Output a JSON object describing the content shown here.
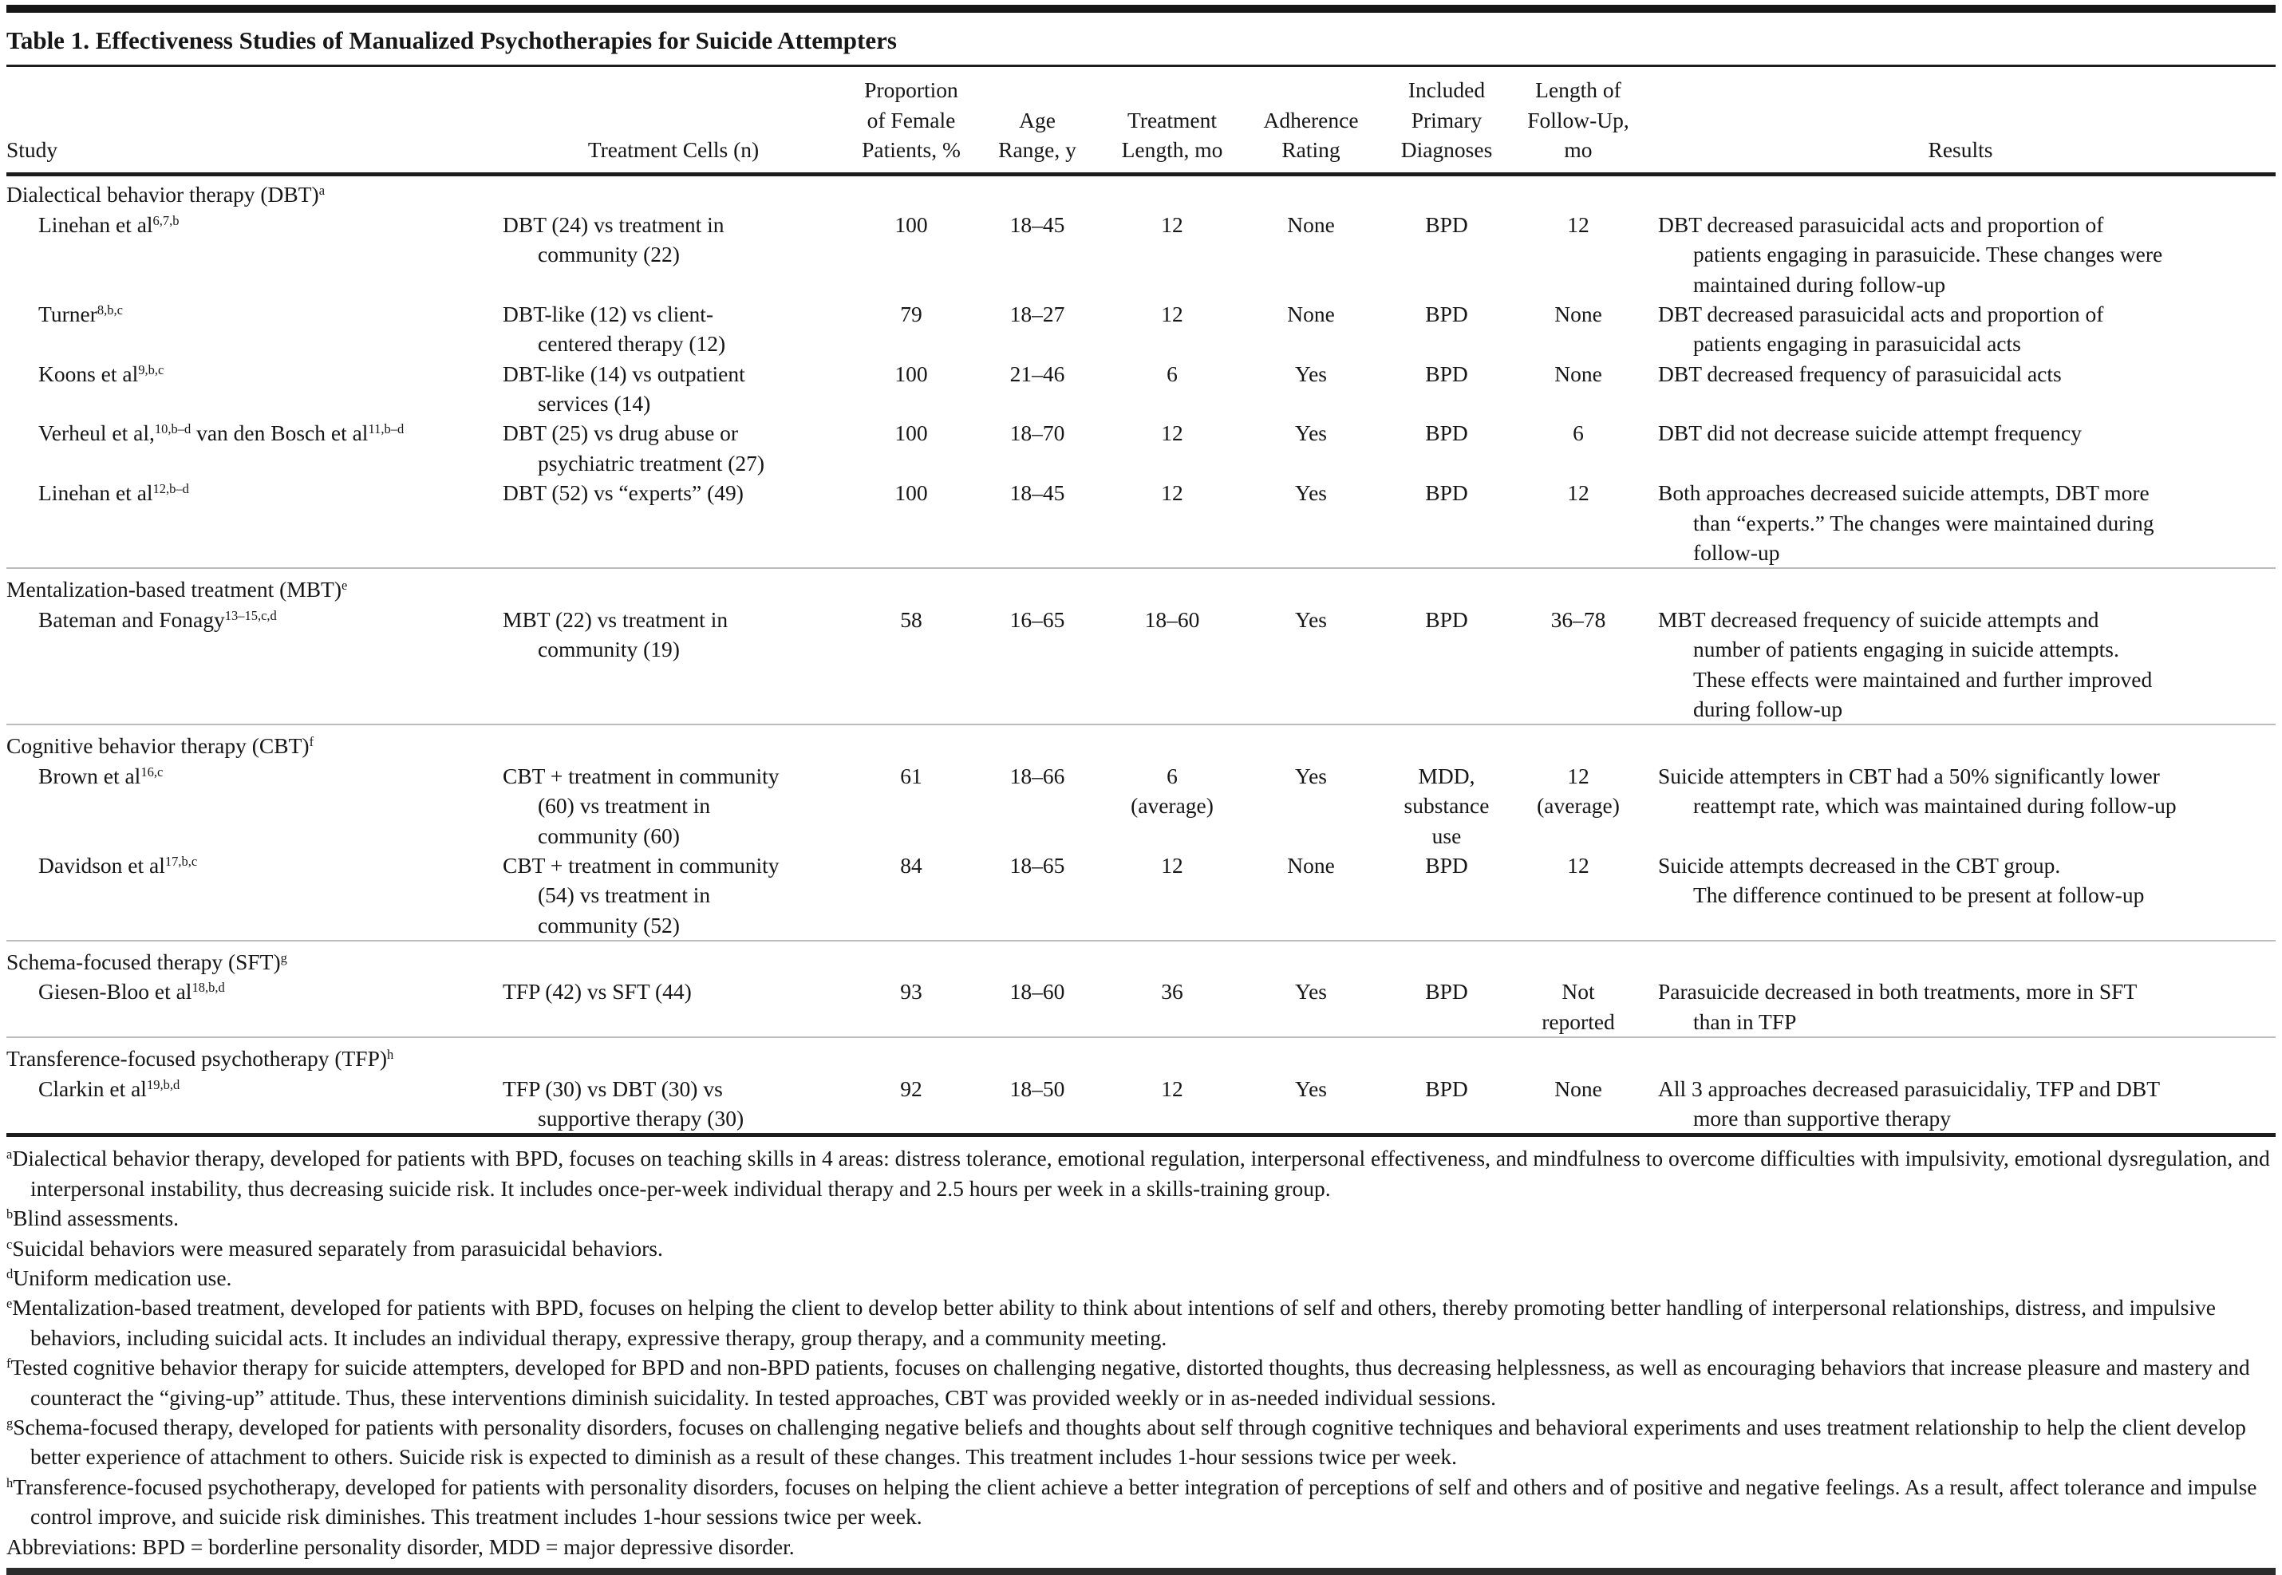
{
  "page": {
    "title": "Table 1. Effectiveness Studies of Manualized Psychotherapies for Suicide Attempters"
  },
  "columns": [
    {
      "key": "study",
      "label": "Study"
    },
    {
      "key": "treatment",
      "label": "Treatment Cells (n)"
    },
    {
      "key": "female",
      "label": "Proportion\nof Female\nPatients, %"
    },
    {
      "key": "age",
      "label": "Age\nRange, y"
    },
    {
      "key": "length",
      "label": "Treatment\nLength, mo"
    },
    {
      "key": "adherence",
      "label": "Adherence\nRating"
    },
    {
      "key": "diagnoses",
      "label": "Included\nPrimary\nDiagnoses"
    },
    {
      "key": "followup",
      "label": "Length of\nFollow-Up,\nmo"
    },
    {
      "key": "results",
      "label": "Results"
    }
  ],
  "sections": [
    {
      "label": "Dialectical behavior therapy (DBT)",
      "sup": "a",
      "rows": [
        {
          "study": [
            {
              "text": "Linehan et al",
              "sup": "6,7,b"
            }
          ],
          "treatment": "DBT (24) vs treatment in\ncommunity (22)",
          "female": "100",
          "age": "18–45",
          "length": "12",
          "adherence": "None",
          "diagnoses": "BPD",
          "followup": "12",
          "results": "DBT decreased parasuicidal acts and proportion of\npatients engaging in parasuicide. These changes were\nmaintained during follow-up"
        },
        {
          "study": [
            {
              "text": "Turner",
              "sup": "8,b,c"
            }
          ],
          "treatment": "DBT-like (12) vs client-\ncentered therapy (12)",
          "female": "79",
          "age": "18–27",
          "length": "12",
          "adherence": "None",
          "diagnoses": "BPD",
          "followup": "None",
          "results": "DBT decreased parasuicidal acts and proportion of\npatients engaging in parasuicidal acts"
        },
        {
          "study": [
            {
              "text": "Koons et al",
              "sup": "9,b,c"
            }
          ],
          "treatment": "DBT-like (14) vs outpatient\nservices (14)",
          "female": "100",
          "age": "21–46",
          "length": "6",
          "adherence": "Yes",
          "diagnoses": "BPD",
          "followup": "None",
          "results": "DBT decreased frequency of parasuicidal acts"
        },
        {
          "study": [
            {
              "text": "Verheul et al,",
              "sup": "10,b–d"
            },
            {
              "text": " van den Bosch et al",
              "sup": "11,b–d"
            }
          ],
          "treatment": "DBT (25) vs drug abuse or\npsychiatric treatment (27)",
          "female": "100",
          "age": "18–70",
          "length": "12",
          "adherence": "Yes",
          "diagnoses": "BPD",
          "followup": "6",
          "results": "DBT did not decrease suicide attempt frequency"
        },
        {
          "study": [
            {
              "text": "Linehan et al",
              "sup": "12,b–d"
            }
          ],
          "treatment": "DBT (52) vs “experts” (49)",
          "female": "100",
          "age": "18–45",
          "length": "12",
          "adherence": "Yes",
          "diagnoses": "BPD",
          "followup": "12",
          "results": "Both approaches decreased suicide attempts, DBT more\nthan “experts.” The changes were maintained during\nfollow-up"
        }
      ]
    },
    {
      "label": "Mentalization-based treatment (MBT)",
      "sup": "e",
      "rows": [
        {
          "study": [
            {
              "text": "Bateman and Fonagy",
              "sup": "13–15,c,d"
            }
          ],
          "treatment": "MBT (22) vs treatment in\ncommunity (19)",
          "female": "58",
          "age": "16–65",
          "length": "18–60",
          "adherence": "Yes",
          "diagnoses": "BPD",
          "followup": "36–78",
          "results": "MBT decreased frequency of suicide attempts and\nnumber of patients engaging in suicide attempts.\nThese effects were maintained and further improved\nduring follow-up"
        }
      ]
    },
    {
      "label": "Cognitive behavior therapy (CBT)",
      "sup": "f",
      "rows": [
        {
          "study": [
            {
              "text": "Brown et al",
              "sup": "16,c"
            }
          ],
          "treatment": "CBT + treatment in community\n(60) vs treatment in\ncommunity (60)",
          "female": "61",
          "age": "18–66",
          "length": "6\n(average)",
          "adherence": "Yes",
          "diagnoses": "MDD,\nsubstance\nuse",
          "followup": "12\n(average)",
          "results": "Suicide attempters in CBT had a 50% significantly lower\nreattempt rate, which was maintained during follow-up"
        },
        {
          "study": [
            {
              "text": "Davidson et al",
              "sup": "17,b,c"
            }
          ],
          "treatment": "CBT + treatment in community\n(54) vs treatment in\ncommunity (52)",
          "female": "84",
          "age": "18–65",
          "length": "12",
          "adherence": "None",
          "diagnoses": "BPD",
          "followup": "12",
          "results": "Suicide attempts decreased in the CBT group.\nThe difference continued to be present at follow-up"
        }
      ]
    },
    {
      "label": "Schema-focused therapy (SFT)",
      "sup": "g",
      "rows": [
        {
          "study": [
            {
              "text": "Giesen-Bloo et al",
              "sup": "18,b,d"
            }
          ],
          "treatment": "TFP (42) vs SFT (44)",
          "female": "93",
          "age": "18–60",
          "length": "36",
          "adherence": "Yes",
          "diagnoses": "BPD",
          "followup": "Not\nreported",
          "results": "Parasuicide decreased in both treatments, more in SFT\nthan in TFP"
        }
      ]
    },
    {
      "label": "Transference-focused psychotherapy (TFP)",
      "sup": "h",
      "rows": [
        {
          "study": [
            {
              "text": "Clarkin et al",
              "sup": "19,b,d"
            }
          ],
          "treatment": "TFP (30) vs DBT (30) vs\nsupportive therapy (30)",
          "female": "92",
          "age": "18–50",
          "length": "12",
          "adherence": "Yes",
          "diagnoses": "BPD",
          "followup": "None",
          "results": "All 3 approaches decreased parasuicidaliy, TFP and DBT\nmore than supportive therapy"
        }
      ]
    }
  ],
  "footnotes": [
    {
      "sup": "a",
      "text": "Dialectical behavior therapy, developed for patients with BPD, focuses on teaching skills in 4 areas: distress tolerance, emotional regulation, interpersonal effectiveness, and mindfulness to overcome difficulties with impulsivity, emotional dysregulation, and interpersonal instability, thus decreasing suicide risk. It includes once-per-week individual therapy and 2.5 hours per week in a skills-training group."
    },
    {
      "sup": "b",
      "text": "Blind assessments."
    },
    {
      "sup": "c",
      "text": "Suicidal behaviors were measured separately from parasuicidal behaviors."
    },
    {
      "sup": "d",
      "text": "Uniform medication use."
    },
    {
      "sup": "e",
      "text": "Mentalization-based treatment, developed for patients with BPD, focuses on helping the client to develop better ability to think about intentions of self and others, thereby promoting better handling of interpersonal relationships, distress, and impulsive behaviors, including suicidal acts. It includes an individual therapy, expressive therapy, group therapy, and a community meeting."
    },
    {
      "sup": "f",
      "text": "Tested cognitive behavior therapy for suicide attempters, developed for BPD and non-BPD patients, focuses on challenging negative, distorted thoughts, thus decreasing helplessness, as well as encouraging behaviors that increase pleasure and mastery and counteract the “giving-up” attitude. Thus, these interventions diminish suicidality. In tested approaches, CBT was provided weekly or in as-needed individual sessions."
    },
    {
      "sup": "g",
      "text": "Schema-focused therapy, developed for patients with personality disorders, focuses on challenging negative beliefs and thoughts about self through cognitive techniques and behavioral experiments and uses treatment relationship to help the client develop better experience of attachment to others. Suicide risk is expected to diminish as a result of these changes. This treatment includes 1-hour sessions twice per week."
    },
    {
      "sup": "h",
      "text": "Transference-focused psychotherapy, developed for patients with personality disorders, focuses on helping the client achieve a better integration of perceptions of self and others and of positive and negative feelings. As a result, affect tolerance and impulse control improve, and suicide risk diminishes. This treatment includes 1-hour sessions twice per week."
    }
  ],
  "abbreviations": "Abbreviations: BPD = borderline personality disorder, MDD = major depressive disorder."
}
